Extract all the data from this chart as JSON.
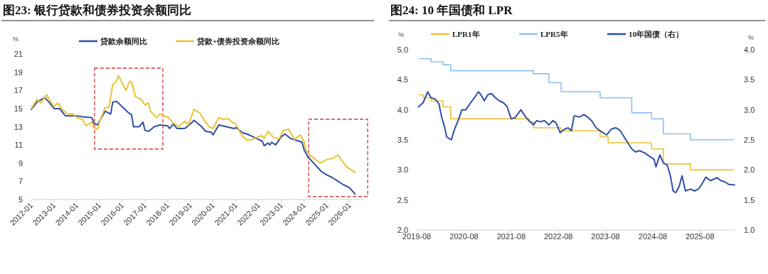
{
  "chart_data": [
    {
      "type": "line",
      "title": "图23: 银行贷款和债券投资余额同比",
      "ylabel": "%",
      "xlim": [
        "2012-01",
        "2026-08"
      ],
      "xticks": [
        "2012-01",
        "2013-01",
        "2014-01",
        "2015-01",
        "2016-01",
        "2017-01",
        "2018-01",
        "2019-01",
        "2020-01",
        "2021-01",
        "2022-01",
        "2023-01",
        "2024-01",
        "2025-01",
        "2026-01"
      ],
      "ylim": [
        5,
        21
      ],
      "yticks": [
        5,
        7,
        9,
        11,
        13,
        15,
        17,
        19,
        21
      ],
      "legend": "top",
      "series": [
        {
          "name": "贷款余额同比",
          "color": "#2e4fa3",
          "x": [
            "2012-01",
            "2012-04",
            "2012-08",
            "2012-10",
            "2013-01",
            "2013-04",
            "2013-07",
            "2013-10",
            "2014-01",
            "2014-04",
            "2014-09",
            "2014-10",
            "2014-12",
            "2015-01",
            "2015-04",
            "2015-07",
            "2015-08",
            "2015-10",
            "2016-01",
            "2016-04",
            "2016-06",
            "2016-07",
            "2016-10",
            "2016-12",
            "2017-01",
            "2017-03",
            "2017-06",
            "2017-09",
            "2018-01",
            "2018-02",
            "2018-04",
            "2018-06",
            "2018-10",
            "2019-01",
            "2019-03",
            "2019-07",
            "2019-09",
            "2019-12",
            "2020-01",
            "2020-04",
            "2020-08",
            "2020-12",
            "2021-01",
            "2021-05",
            "2021-07",
            "2021-10",
            "2022-01",
            "2022-03",
            "2022-04",
            "2022-06",
            "2022-07",
            "2022-08",
            "2022-10",
            "2023-01",
            "2023-03",
            "2023-06",
            "2023-09",
            "2023-12",
            "2024-01",
            "2024-03",
            "2024-07",
            "2024-10",
            "2025-01",
            "2025-04",
            "2025-07",
            "2025-10",
            "2026-01",
            "2026-04"
          ],
          "values": [
            14.9,
            15.7,
            16.2,
            15.8,
            15.0,
            15.0,
            14.2,
            14.2,
            14.2,
            14.1,
            14.0,
            13.4,
            13.2,
            13.6,
            14.7,
            14.4,
            15.7,
            15.8,
            15.2,
            14.6,
            14.3,
            13.0,
            13.0,
            13.5,
            12.6,
            12.5,
            13.0,
            13.2,
            13.1,
            12.8,
            13.3,
            12.8,
            12.8,
            13.3,
            13.7,
            13.0,
            12.5,
            12.4,
            12.1,
            13.2,
            13.0,
            12.8,
            12.9,
            12.3,
            12.2,
            11.9,
            11.6,
            11.4,
            10.9,
            11.2,
            11.0,
            11.3,
            11.0,
            11.9,
            12.2,
            11.7,
            11.5,
            11.3,
            10.5,
            9.7,
            8.8,
            8.1,
            7.7,
            7.4,
            7.0,
            6.6,
            6.3,
            5.6
          ]
        },
        {
          "name": "贷款+债券投资余额同比",
          "color": "#ecc232",
          "x": [
            "2012-01",
            "2012-04",
            "2012-06",
            "2012-09",
            "2013-01",
            "2013-03",
            "2013-05",
            "2013-08",
            "2013-11",
            "2014-01",
            "2014-04",
            "2014-06",
            "2014-09",
            "2014-10",
            "2014-12",
            "2015-01",
            "2015-04",
            "2015-06",
            "2015-08",
            "2015-10",
            "2015-11",
            "2016-01",
            "2016-03",
            "2016-05",
            "2016-06",
            "2016-08",
            "2016-11",
            "2017-01",
            "2017-03",
            "2017-04",
            "2017-07",
            "2017-09",
            "2017-12",
            "2018-01",
            "2018-04",
            "2018-07",
            "2018-10",
            "2018-12",
            "2019-03",
            "2019-06",
            "2019-09",
            "2019-11",
            "2020-01",
            "2020-04",
            "2020-06",
            "2020-09",
            "2020-11",
            "2021-01",
            "2021-04",
            "2021-07",
            "2021-10",
            "2022-01",
            "2022-03",
            "2022-04",
            "2022-06",
            "2022-09",
            "2022-12",
            "2023-02",
            "2023-05",
            "2023-08",
            "2023-11",
            "2024-01",
            "2024-02",
            "2024-04",
            "2024-07",
            "2024-10",
            "2025-01",
            "2025-04",
            "2025-07",
            "2025-10",
            "2025-12",
            "2026-04"
          ],
          "values": [
            15.0,
            16.0,
            15.6,
            16.5,
            15.2,
            15.6,
            15.0,
            14.4,
            14.4,
            14.0,
            13.8,
            13.1,
            13.5,
            12.9,
            12.7,
            13.5,
            15.1,
            15.1,
            17.6,
            18.0,
            18.6,
            17.8,
            17.0,
            18.0,
            17.9,
            16.3,
            16.0,
            15.4,
            15.6,
            14.7,
            14.0,
            14.4,
            14.1,
            14.1,
            13.4,
            13.0,
            13.6,
            13.2,
            14.9,
            14.5,
            13.5,
            13.0,
            12.8,
            14.0,
            13.8,
            13.9,
            13.5,
            13.3,
            12.1,
            11.5,
            11.6,
            11.9,
            12.0,
            11.7,
            12.5,
            11.8,
            11.7,
            12.6,
            12.7,
            11.6,
            12.1,
            11.4,
            10.4,
            9.9,
            9.4,
            9.0,
            9.4,
            9.5,
            9.9,
            9.0,
            8.5,
            8.0
          ]
        }
      ]
    },
    {
      "type": "line",
      "title": "图24: 10 年国债和 LPR",
      "ylabel": "%",
      "y2label": "%",
      "xlim": [
        "2019-08",
        "2026-05"
      ],
      "xticks": [
        "2019-08",
        "2020-08",
        "2021-08",
        "2022-08",
        "2023-08",
        "2024-08",
        "2025-08"
      ],
      "ylim": [
        2,
        5
      ],
      "yticks": [
        {
          "value": 2,
          "label": "2.0"
        },
        {
          "value": 2.5,
          "label": "2.5"
        },
        {
          "value": 3,
          "label": "3.0"
        },
        {
          "value": 3.5,
          "label": "3.5"
        },
        {
          "value": 4,
          "label": "4.0"
        },
        {
          "value": 4.5,
          "label": "4.5"
        },
        {
          "value": 5,
          "label": "5.0"
        }
      ],
      "y2lim": [
        1,
        4
      ],
      "y2ticks": [
        {
          "value": 1,
          "label": "1.0"
        },
        {
          "value": 1.5,
          "label": "1.5"
        },
        {
          "value": 2,
          "label": "2.0"
        },
        {
          "value": 2.5,
          "label": "2.5"
        },
        {
          "value": 3,
          "label": "3.0"
        },
        {
          "value": 3.5,
          "label": "3.5"
        },
        {
          "value": 4,
          "label": "4.0"
        }
      ],
      "legend": "top",
      "series": [
        {
          "name": "LPR1年",
          "type": "step",
          "color": "#ecc232",
          "x": [
            "2019-08-20",
            "2019-09-20",
            "2019-11-20",
            "2020-02-20",
            "2020-04-20",
            "2021-12-20",
            "2022-01-20",
            "2022-08-22",
            "2023-06-20",
            "2023-08-21",
            "2024-07-22",
            "2024-10-21",
            "2025-05-20",
            "2026-04-20"
          ],
          "values": [
            4.25,
            4.2,
            4.15,
            4.05,
            3.85,
            3.8,
            3.7,
            3.65,
            3.55,
            3.45,
            3.35,
            3.1,
            3.0,
            3.0
          ]
        },
        {
          "name": "LPR5年",
          "type": "step",
          "color": "#8cc1f2",
          "x": [
            "2019-08-20",
            "2019-11-20",
            "2020-02-20",
            "2020-04-20",
            "2022-01-20",
            "2022-05-20",
            "2022-08-22",
            "2023-06-20",
            "2024-02-20",
            "2024-07-22",
            "2024-10-21",
            "2025-05-20",
            "2026-04-20"
          ],
          "values": [
            4.85,
            4.8,
            4.75,
            4.65,
            4.6,
            4.45,
            4.3,
            4.2,
            3.95,
            3.85,
            3.6,
            3.5,
            3.5
          ]
        },
        {
          "name": "10年国债（右）",
          "axis": "y2",
          "color": "#2e4fa3",
          "x": [
            "2019-08-15",
            "2019-09-20",
            "2019-10-25",
            "2019-11-20",
            "2019-12-20",
            "2020-01-20",
            "2020-02-10",
            "2020-03-05",
            "2020-03-20",
            "2020-04-10",
            "2020-04-25",
            "2020-05-20",
            "2020-06-20",
            "2020-07-15",
            "2020-08-15",
            "2020-09-15",
            "2020-10-20",
            "2020-11-20",
            "2020-12-10",
            "2021-01-05",
            "2021-02-01",
            "2021-03-01",
            "2021-04-01",
            "2021-05-01",
            "2021-06-01",
            "2021-07-01",
            "2021-08-01",
            "2021-09-01",
            "2021-10-15",
            "2021-11-15",
            "2021-12-15",
            "2022-01-20",
            "2022-02-15",
            "2022-03-15",
            "2022-04-15",
            "2022-05-20",
            "2022-06-20",
            "2022-07-15",
            "2022-08-15",
            "2022-09-20",
            "2022-10-15",
            "2022-11-10",
            "2022-12-01",
            "2023-01-10",
            "2023-02-15",
            "2023-03-15",
            "2023-04-15",
            "2023-05-20",
            "2023-06-20",
            "2023-08-10",
            "2023-09-15",
            "2023-10-20",
            "2023-11-20",
            "2023-12-20",
            "2024-01-20",
            "2024-02-20",
            "2024-03-20",
            "2024-04-20",
            "2024-06-01",
            "2024-07-10",
            "2024-08-10",
            "2024-08-25",
            "2024-09-25",
            "2024-10-20",
            "2024-11-20",
            "2024-12-15",
            "2025-01-05",
            "2025-01-25",
            "2025-02-20",
            "2025-03-15",
            "2025-04-10",
            "2025-05-20",
            "2025-06-20",
            "2025-07-20",
            "2025-08-20",
            "2025-09-15",
            "2025-10-20",
            "2025-11-20",
            "2025-12-10",
            "2026-01-10",
            "2026-02-10",
            "2026-03-10",
            "2026-04-25"
          ],
          "values": [
            3.05,
            3.12,
            3.3,
            3.2,
            3.18,
            3.1,
            2.88,
            2.7,
            2.55,
            2.52,
            2.5,
            2.68,
            2.84,
            3.0,
            3.0,
            3.1,
            3.2,
            3.3,
            3.25,
            3.15,
            3.25,
            3.27,
            3.2,
            3.15,
            3.12,
            3.05,
            2.85,
            2.87,
            3.0,
            2.9,
            2.82,
            2.75,
            2.82,
            2.8,
            2.82,
            2.75,
            2.82,
            2.78,
            2.62,
            2.68,
            2.7,
            2.65,
            2.9,
            2.88,
            2.92,
            2.88,
            2.82,
            2.7,
            2.65,
            2.58,
            2.68,
            2.7,
            2.66,
            2.56,
            2.45,
            2.35,
            2.3,
            2.32,
            2.28,
            2.22,
            2.18,
            2.05,
            2.25,
            2.12,
            2.08,
            1.9,
            1.65,
            1.62,
            1.72,
            1.9,
            1.65,
            1.68,
            1.65,
            1.68,
            1.78,
            1.88,
            1.82,
            1.85,
            1.87,
            1.82,
            1.8,
            1.76,
            1.75
          ]
        }
      ]
    }
  ]
}
